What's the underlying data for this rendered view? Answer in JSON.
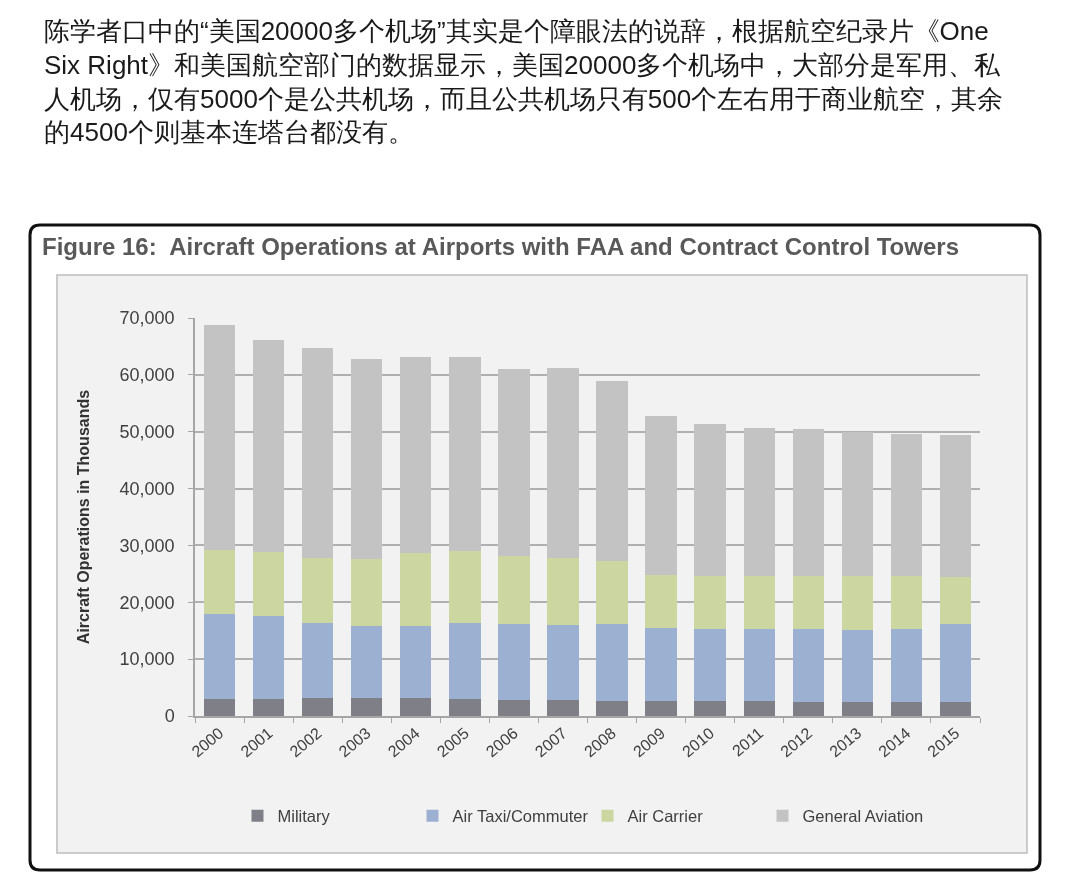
{
  "chart_data": {
    "type": "bar",
    "title": "Figure 16:  Aircraft Operations at Airports with FAA and Contract Control Towers",
    "ylabel": "Aircraft Operations in Thousands",
    "annotations": [
      "陈学者口中的“美国20000多个机场”其实是个障眼法的说辞，根据航空纪录片《One Six Right》和美国航空部门的数据显示，美国20000多个机场中，大部分是军用、私人机场，仅有5000个是公共机场，而且公共机场只有500个左右用于商业航空，其余的4500个则基本连塔台都没有。"
    ],
    "categories": [
      "2000",
      "2001",
      "2002",
      "2003",
      "2004",
      "2005",
      "2006",
      "2007",
      "2008",
      "2009",
      "2010",
      "2011",
      "2012",
      "2013",
      "2014",
      "2015"
    ],
    "stacked": true,
    "series": [
      {
        "name": "Military",
        "color": "#7f7f87",
        "values": [
          3000,
          3000,
          3100,
          3100,
          3100,
          3000,
          2800,
          2800,
          2600,
          2600,
          2600,
          2600,
          2500,
          2500,
          2500,
          2500
        ]
      },
      {
        "name": "Air Taxi/Commuter",
        "color": "#9cb0d1",
        "values": [
          14900,
          14600,
          13300,
          12700,
          12700,
          13300,
          13300,
          13200,
          13500,
          12800,
          12700,
          12700,
          12800,
          12700,
          12800,
          13700
        ]
      },
      {
        "name": "Air Carrier",
        "color": "#cbd6a0",
        "values": [
          11300,
          11300,
          11400,
          11800,
          12800,
          12700,
          12100,
          11800,
          11100,
          9400,
          9300,
          9400,
          9400,
          9400,
          9400,
          8300
        ]
      },
      {
        "name": "General Aviation",
        "color": "#c3c3c3",
        "values": [
          39500,
          37300,
          37000,
          35200,
          34500,
          34100,
          32800,
          33400,
          31700,
          27900,
          26700,
          25900,
          25800,
          25300,
          24900,
          25000
        ]
      }
    ],
    "ylim": [
      0,
      70000
    ],
    "yticks": [
      0,
      {
        "value": 10000,
        "label": "10,000"
      },
      {
        "value": 20000,
        "label": "20,000"
      },
      {
        "value": 30000,
        "label": "30,000"
      },
      {
        "value": 40000,
        "label": "40,000"
      },
      {
        "value": 50000,
        "label": "50,000"
      },
      {
        "value": 60000,
        "label": "60,000"
      },
      {
        "value": 70000,
        "label": "70,000"
      }
    ],
    "grid": "y",
    "legend": "bottom"
  }
}
